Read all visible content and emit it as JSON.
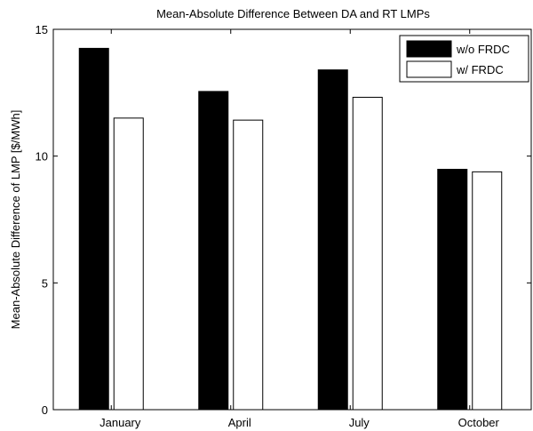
{
  "chart_data": {
    "type": "bar",
    "title": "Mean-Absolute Difference Between DA and RT LMPs",
    "xlabel": "",
    "ylabel": "Mean-Absolute Difference of LMP [$/MWh]",
    "categories": [
      "January",
      "April",
      "July",
      "October"
    ],
    "series": [
      {
        "name": "w/o FRDC",
        "values": [
          14.25,
          12.55,
          13.4,
          9.48
        ],
        "color": "#000000"
      },
      {
        "name": "w/ FRDC",
        "values": [
          11.5,
          11.42,
          12.32,
          9.38
        ],
        "color": "#ffffff"
      }
    ],
    "ylim": [
      0,
      15
    ],
    "yticks": [
      0,
      5,
      10,
      15
    ],
    "legend_position": "top-right",
    "grid": false
  }
}
